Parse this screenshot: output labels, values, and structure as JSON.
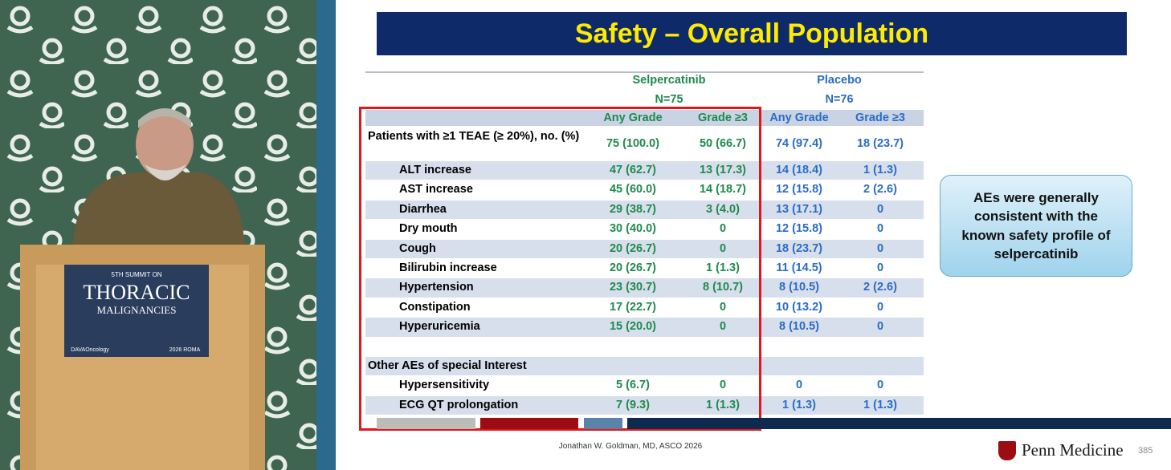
{
  "stage": {
    "sign": {
      "line1": "5TH SUMMIT ON",
      "line2": "THORACIC",
      "line3": "MALIGNANCIES",
      "brand": "DAVAOncology",
      "event": "2026 ROMA"
    }
  },
  "slide": {
    "title": "Safety – Overall Population",
    "table": {
      "groups": [
        {
          "name": "Selpercatinib",
          "n": "N=75"
        },
        {
          "name": "Placebo",
          "n": "N=76"
        }
      ],
      "columns": [
        "Any Grade",
        "Grade ≥3",
        "Any Grade",
        "Grade ≥3"
      ],
      "summary": {
        "label": "Patients with ≥1 TEAE (≥ 20%), no. (%)",
        "values": [
          "75 (100.0)",
          "50 (66.7)",
          "74 (97.4)",
          "18 (23.7)"
        ]
      },
      "rows": [
        {
          "label": "ALT increase",
          "values": [
            "47 (62.7)",
            "13 (17.3)",
            "14 (18.4)",
            "1 (1.3)"
          ]
        },
        {
          "label": "AST increase",
          "values": [
            "45 (60.0)",
            "14 (18.7)",
            "12 (15.8)",
            "2 (2.6)"
          ]
        },
        {
          "label": "Diarrhea",
          "values": [
            "29 (38.7)",
            "3 (4.0)",
            "13 (17.1)",
            "0"
          ]
        },
        {
          "label": "Dry mouth",
          "values": [
            "30 (40.0)",
            "0",
            "12 (15.8)",
            "0"
          ]
        },
        {
          "label": "Cough",
          "values": [
            "20 (26.7)",
            "0",
            "18 (23.7)",
            "0"
          ]
        },
        {
          "label": "Bilirubin increase",
          "values": [
            "20 (26.7)",
            "1 (1.3)",
            "11 (14.5)",
            "0"
          ]
        },
        {
          "label": "Hypertension",
          "values": [
            "23 (30.7)",
            "8 (10.7)",
            "8 (10.5)",
            "2 (2.6)"
          ]
        },
        {
          "label": "Constipation",
          "values": [
            "17 (22.7)",
            "0",
            "10 (13.2)",
            "0"
          ]
        },
        {
          "label": "Hyperuricemia",
          "values": [
            "15 (20.0)",
            "0",
            "8 (10.5)",
            "0"
          ]
        }
      ],
      "special": {
        "heading": "Other AEs of special Interest",
        "rows": [
          {
            "label": "Hypersensitivity",
            "values": [
              "5 (6.7)",
              "0",
              "0",
              "0"
            ]
          },
          {
            "label": "ECG QT prolongation",
            "values": [
              "7 (9.3)",
              "1 (1.3)",
              "1 (1.3)",
              "1 (1.3)"
            ]
          }
        ]
      }
    },
    "callout": [
      "AEs were generally",
      "consistent with the",
      "known safety profile of",
      "selpercatinib"
    ],
    "footer": {
      "credit": "Jonathan W. Goldman, MD, ASCO 2026",
      "logo": "Penn Medicine",
      "page": "385"
    }
  }
}
